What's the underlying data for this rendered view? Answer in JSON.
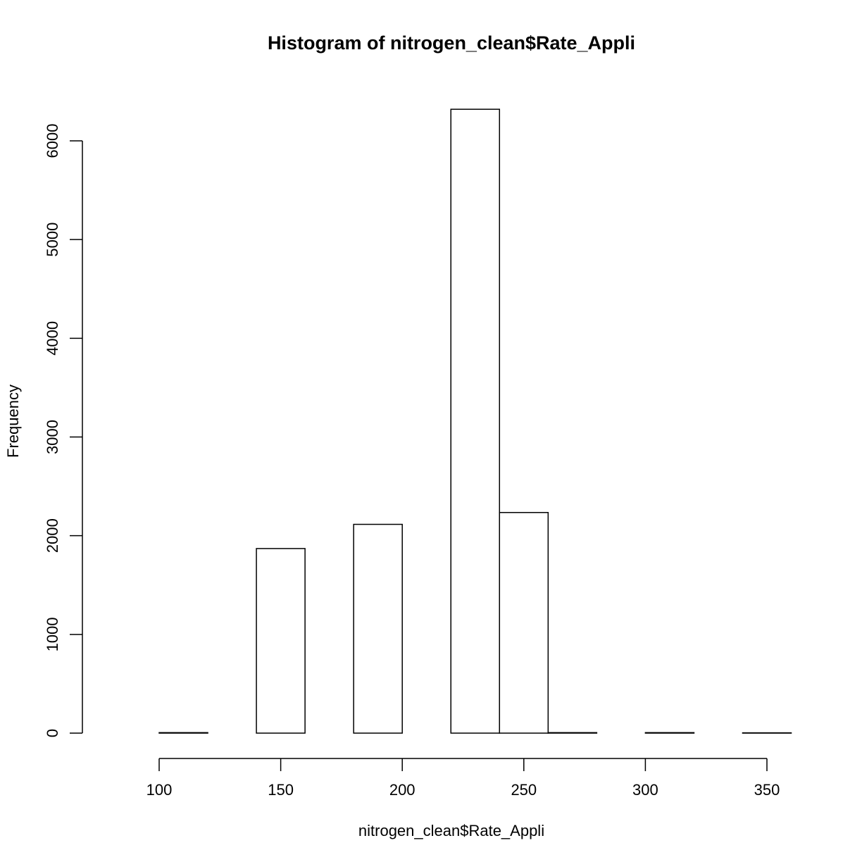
{
  "chart_data": {
    "type": "bar",
    "title": "Histogram of nitrogen_clean$Rate_Appli",
    "xlabel": "nitrogen_clean$Rate_Appli",
    "ylabel": "Frequency",
    "bins": [
      {
        "start": 80,
        "end": 100,
        "count": 0
      },
      {
        "start": 100,
        "end": 120,
        "count": 5
      },
      {
        "start": 120,
        "end": 140,
        "count": 0
      },
      {
        "start": 140,
        "end": 160,
        "count": 1870
      },
      {
        "start": 160,
        "end": 180,
        "count": 0
      },
      {
        "start": 180,
        "end": 200,
        "count": 2115
      },
      {
        "start": 200,
        "end": 220,
        "count": 0
      },
      {
        "start": 220,
        "end": 240,
        "count": 6320
      },
      {
        "start": 240,
        "end": 260,
        "count": 2235
      },
      {
        "start": 260,
        "end": 280,
        "count": 5
      },
      {
        "start": 280,
        "end": 300,
        "count": 0
      },
      {
        "start": 300,
        "end": 320,
        "count": 5
      },
      {
        "start": 320,
        "end": 340,
        "count": 0
      },
      {
        "start": 340,
        "end": 360,
        "count": 3
      }
    ],
    "xticks": [
      100,
      150,
      200,
      250,
      300,
      350
    ],
    "yticks": [
      0,
      1000,
      2000,
      3000,
      4000,
      5000,
      6000
    ],
    "xlim": [
      80,
      360
    ],
    "ylim": [
      0,
      6320
    ],
    "grid": false
  }
}
